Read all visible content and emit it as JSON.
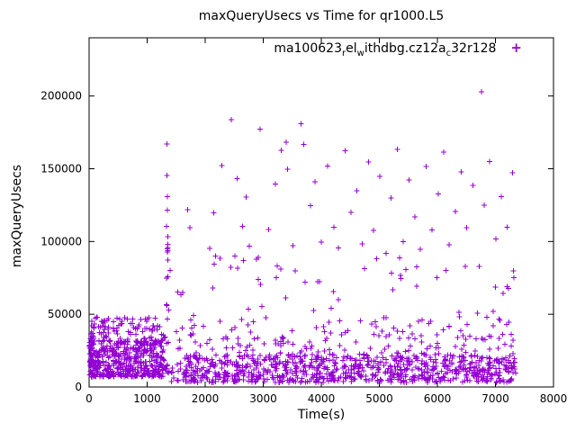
{
  "chart_data": {
    "type": "scatter",
    "title": "maxQueryUsecs vs Time for qr1000.L5",
    "xlabel": "Time(s)",
    "ylabel": "maxQueryUsecs",
    "xlim": [
      0,
      8000
    ],
    "ylim": [
      0,
      240000
    ],
    "xticks": [
      0,
      1000,
      2000,
      3000,
      4000,
      5000,
      6000,
      7000,
      8000
    ],
    "yticks": [
      0,
      50000,
      100000,
      150000,
      200000
    ],
    "grid": false,
    "marker": "plus",
    "marker_color": "#9400d3",
    "legend": {
      "position": "top-inside-right",
      "series_label_plain": "ma100623_rel_withdbg.cz12a_c32r128",
      "segments": [
        {
          "t": "ma100623",
          "sub": false
        },
        {
          "t": "r",
          "sub": true
        },
        {
          "t": "el",
          "sub": false
        },
        {
          "t": "w",
          "sub": true
        },
        {
          "t": "ithdbg.cz12a",
          "sub": false
        },
        {
          "t": "c",
          "sub": true
        },
        {
          "t": "32r128",
          "sub": false
        }
      ],
      "marker_glyph": "+"
    },
    "seed": 1234,
    "point_clusters": [
      {
        "x": [
          10,
          1300
        ],
        "y": [
          7000,
          32000
        ],
        "count": 450,
        "bias": 1.3
      },
      {
        "x": [
          10,
          1300
        ],
        "y": [
          30000,
          48000
        ],
        "count": 110,
        "bias": 1.0
      },
      {
        "x": [
          0,
          80
        ],
        "y": [
          5000,
          42000
        ],
        "count": 25,
        "bias": 1.0
      },
      {
        "x": [
          1300,
          7350
        ],
        "y": [
          3000,
          22000
        ],
        "count": 850,
        "bias": 1.2
      },
      {
        "x": [
          1300,
          7350
        ],
        "y": [
          22000,
          45000
        ],
        "count": 160,
        "bias": 1.5
      },
      {
        "x": [
          1300,
          7350
        ],
        "y": [
          45000,
          90000
        ],
        "count": 70,
        "bias": 1.3
      },
      {
        "x": [
          1320,
          1390
        ],
        "y": [
          50000,
          100000
        ],
        "count": 8,
        "bias": 1.0
      }
    ],
    "outlier_points": [
      [
        1338,
        167000
      ],
      [
        1342,
        145500
      ],
      [
        1351,
        130800
      ],
      [
        1348,
        121500
      ],
      [
        1336,
        110300
      ],
      [
        1358,
        103200
      ],
      [
        1347,
        94800
      ],
      [
        1700,
        121800
      ],
      [
        1735,
        109500
      ],
      [
        2080,
        95400
      ],
      [
        2145,
        119700
      ],
      [
        2255,
        88300
      ],
      [
        2290,
        152300
      ],
      [
        2452,
        183700
      ],
      [
        2512,
        90100
      ],
      [
        2548,
        143200
      ],
      [
        2643,
        110400
      ],
      [
        2708,
        130600
      ],
      [
        2761,
        96900
      ],
      [
        2948,
        177300
      ],
      [
        3095,
        108200
      ],
      [
        3212,
        139400
      ],
      [
        3308,
        162800
      ],
      [
        3398,
        168200
      ],
      [
        3422,
        149800
      ],
      [
        3509,
        97200
      ],
      [
        3648,
        181000
      ],
      [
        3701,
        166700
      ],
      [
        3812,
        124600
      ],
      [
        3894,
        140900
      ],
      [
        4003,
        99600
      ],
      [
        4107,
        151800
      ],
      [
        4214,
        109800
      ],
      [
        4297,
        95700
      ],
      [
        4411,
        162500
      ],
      [
        4508,
        119900
      ],
      [
        4612,
        134700
      ],
      [
        4703,
        98400
      ],
      [
        4811,
        154600
      ],
      [
        4902,
        107500
      ],
      [
        5007,
        144800
      ],
      [
        5113,
        91800
      ],
      [
        5204,
        129900
      ],
      [
        5311,
        163200
      ],
      [
        5407,
        99800
      ],
      [
        5513,
        142300
      ],
      [
        5611,
        116800
      ],
      [
        5703,
        94600
      ],
      [
        5807,
        151700
      ],
      [
        5904,
        107900
      ],
      [
        6012,
        132800
      ],
      [
        6108,
        161500
      ],
      [
        6203,
        97700
      ],
      [
        6311,
        120700
      ],
      [
        6407,
        147900
      ],
      [
        6502,
        109600
      ],
      [
        6611,
        138700
      ],
      [
        6758,
        202900
      ],
      [
        6803,
        124800
      ],
      [
        6902,
        154800
      ],
      [
        7004,
        101900
      ],
      [
        7102,
        130800
      ],
      [
        7198,
        109700
      ],
      [
        7295,
        147200
      ]
    ]
  }
}
